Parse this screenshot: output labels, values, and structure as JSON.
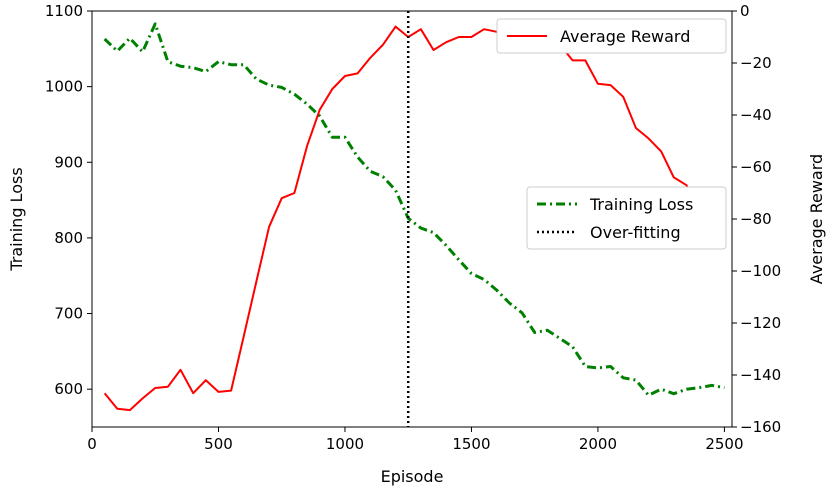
{
  "chart_data": {
    "type": "line",
    "xlabel": "Episode",
    "ylabel_left": "Training Loss",
    "ylabel_right": "Average Reward",
    "xlim": [
      0,
      2530
    ],
    "ylim_left": [
      550,
      1100
    ],
    "ylim_right": [
      -160,
      0
    ],
    "xticks": [
      0,
      500,
      1000,
      1500,
      2000,
      2500
    ],
    "yticks_left": [
      600,
      700,
      800,
      900,
      1000,
      1100
    ],
    "yticks_right": [
      0,
      -20,
      -40,
      -60,
      -80,
      -100,
      -120,
      -140,
      -160
    ],
    "ytick_labels_right": [
      "0",
      "−20",
      "−40",
      "−60",
      "−80",
      "−100",
      "−120",
      "−140",
      "−160"
    ],
    "grid": false,
    "overfitting_x": 1250,
    "legend_right": {
      "position": "top-right",
      "entries": [
        "Average Reward"
      ]
    },
    "legend_left": {
      "position": "center-right",
      "entries": [
        "Training Loss",
        "Over-fitting"
      ]
    },
    "series": [
      {
        "name": "Training Loss",
        "axis": "left",
        "color": "#008000",
        "style": "dashdot",
        "x": [
          50,
          100,
          150,
          200,
          250,
          300,
          350,
          400,
          450,
          500,
          550,
          600,
          650,
          700,
          750,
          800,
          850,
          900,
          950,
          1000,
          1050,
          1100,
          1150,
          1200,
          1250,
          1300,
          1350,
          1400,
          1450,
          1500,
          1550,
          1600,
          1650,
          1700,
          1750,
          1800,
          1850,
          1900,
          1950,
          2000,
          2050,
          2100,
          2150,
          2200,
          2250,
          2300,
          2350,
          2400,
          2450,
          2500
        ],
        "y": [
          1063,
          1047,
          1064,
          1046,
          1083,
          1033,
          1027,
          1025,
          1020,
          1033,
          1029,
          1029,
          1010,
          1002,
          999,
          990,
          977,
          961,
          933,
          933,
          907,
          888,
          881,
          863,
          826,
          813,
          807,
          790,
          771,
          753,
          745,
          731,
          714,
          701,
          675,
          678,
          667,
          656,
          630,
          628,
          630,
          615,
          612,
          592,
          600,
          594,
          600,
          602,
          605,
          602
        ]
      },
      {
        "name": "Average Reward",
        "axis": "right",
        "color": "#ff0000",
        "style": "solid",
        "x": [
          50,
          100,
          150,
          200,
          250,
          300,
          350,
          400,
          450,
          500,
          550,
          600,
          650,
          700,
          750,
          800,
          850,
          900,
          950,
          1000,
          1050,
          1100,
          1150,
          1200,
          1250,
          1300,
          1350,
          1400,
          1450,
          1500,
          1550,
          1600,
          1650,
          1700,
          1750,
          1800,
          1850,
          1900,
          1950,
          2000,
          2050,
          2100,
          2150,
          2200,
          2250,
          2300,
          2350,
          2400,
          2450,
          2500
        ],
        "y": [
          -147,
          -153,
          -153.5,
          -149,
          -145,
          -144.5,
          -138,
          -147,
          -142,
          -146.5,
          -146,
          -125,
          -104,
          -83,
          -72,
          -70,
          -52,
          -38,
          -30,
          -25,
          -24,
          -18,
          -13,
          -6,
          -10,
          -7,
          -15,
          -12,
          -10,
          -10,
          -7,
          -8,
          -12,
          -13,
          -11,
          -13,
          -13,
          -19,
          -19,
          -28,
          -28.5,
          -33,
          -45,
          -49,
          -54,
          -64,
          -67,
          -79,
          -76,
          -81
        ]
      }
    ]
  }
}
